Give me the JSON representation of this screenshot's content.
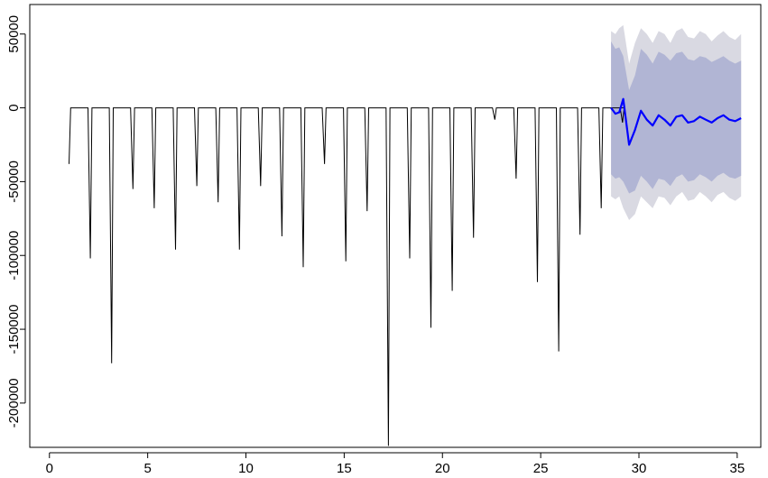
{
  "chart_data": {
    "type": "line",
    "title": "",
    "xlabel": "",
    "ylabel": "",
    "xlim": [
      -1,
      36.2
    ],
    "ylim": [
      -230000,
      70000
    ],
    "x_ticks": [
      0,
      5,
      10,
      15,
      20,
      25,
      30,
      35
    ],
    "x_tick_labels": [
      "0",
      "5",
      "10",
      "15",
      "20",
      "25",
      "30",
      "35"
    ],
    "y_ticks": [
      50000,
      0,
      -50000,
      -100000,
      -150000,
      -200000
    ],
    "y_tick_labels": [
      "50000",
      "0",
      "-50000",
      "-100000",
      "-150000",
      "-200000"
    ],
    "colors": {
      "history_line": "#000000",
      "forecast_line": "#0000ff",
      "band_95": "#d9d9e2",
      "band_80": "#b1b5d4"
    },
    "history": {
      "x_start": 1.0,
      "period": 1.0833,
      "first_partial_dip": [
        1.0,
        -38000
      ],
      "dip_values": [
        -102000,
        -173000,
        -55000,
        -68000,
        -96000,
        -53000,
        -64000,
        -96000,
        -53000,
        -87000,
        -108000,
        -38000,
        -104000,
        -70000,
        -229000,
        -102000,
        -149000,
        -124000,
        -88000,
        -8000,
        -48000,
        -118000,
        -165000,
        -86000,
        -68000,
        -10000
      ]
    },
    "forecast": {
      "x": [
        28.58,
        28.8,
        29.0,
        29.2,
        29.5,
        29.8,
        30.1,
        30.4,
        30.7,
        31.0,
        31.3,
        31.6,
        31.9,
        32.2,
        32.5,
        32.8,
        33.1,
        33.4,
        33.7,
        34.0,
        34.3,
        34.6,
        34.9,
        35.2
      ],
      "mean": [
        0,
        -4000,
        -3000,
        6000,
        -25000,
        -15000,
        -2000,
        -8000,
        -12000,
        -5000,
        -8000,
        -12000,
        -6000,
        -5000,
        -10000,
        -9000,
        -6000,
        -8000,
        -10000,
        -7000,
        -5000,
        -8000,
        -9000,
        -7000
      ],
      "lower80": [
        -45000,
        -48000,
        -47000,
        -50000,
        -58000,
        -56000,
        -46000,
        -50000,
        -55000,
        -48000,
        -49000,
        -53000,
        -47000,
        -45000,
        -50000,
        -49000,
        -45000,
        -47000,
        -50000,
        -46000,
        -44000,
        -47000,
        -48000,
        -46000
      ],
      "upper80": [
        45000,
        40000,
        41000,
        35000,
        12000,
        22000,
        40000,
        36000,
        30000,
        38000,
        36000,
        32000,
        37000,
        38000,
        33000,
        32000,
        35000,
        34000,
        31000,
        33000,
        35000,
        32000,
        30000,
        32000
      ],
      "lower95": [
        -60000,
        -62000,
        -60000,
        -68000,
        -76000,
        -72000,
        -60000,
        -64000,
        -68000,
        -60000,
        -61000,
        -66000,
        -60000,
        -57000,
        -63000,
        -62000,
        -57000,
        -60000,
        -64000,
        -59000,
        -57000,
        -61000,
        -63000,
        -60000
      ],
      "upper95": [
        52000,
        50000,
        54000,
        56000,
        30000,
        44000,
        54000,
        50000,
        44000,
        52000,
        50000,
        44000,
        52000,
        54000,
        48000,
        47000,
        52000,
        50000,
        45000,
        49000,
        52000,
        48000,
        46000,
        50000
      ]
    }
  }
}
